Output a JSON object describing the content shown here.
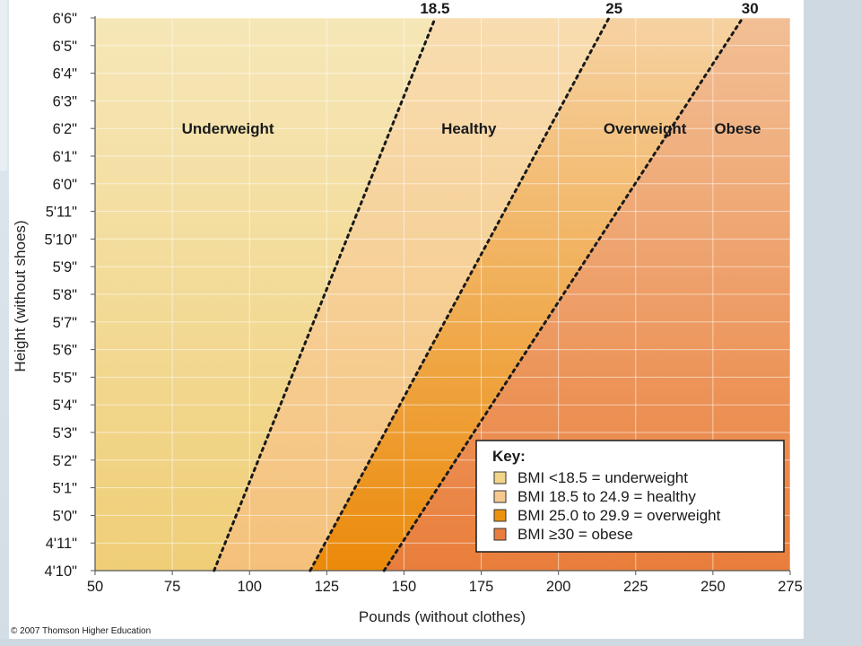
{
  "chart_data": {
    "type": "area",
    "title": "",
    "xlabel": "Pounds (without clothes)",
    "ylabel": "Height (without shoes)",
    "xlim": [
      50,
      275
    ],
    "x_ticks": [
      50,
      75,
      100,
      125,
      150,
      175,
      200,
      225,
      250,
      275
    ],
    "y_range_inches": [
      58,
      78
    ],
    "y_ticks": [
      "4'10\"",
      "4'11\"",
      "5'0\"",
      "5'1\"",
      "5'2\"",
      "5'3\"",
      "5'4\"",
      "5'5\"",
      "5'6\"",
      "5'7\"",
      "5'8\"",
      "5'9\"",
      "5'10\"",
      "5'11\"",
      "6'0\"",
      "6'1\"",
      "6'2\"",
      "6'3\"",
      "6'4\"",
      "6'5\"",
      "6'6\""
    ],
    "grid": true,
    "bmi_lines": [
      {
        "bmi": 18.5,
        "label": "18.5",
        "label_pos": [
          160,
          78
        ]
      },
      {
        "bmi": 25,
        "label": "25",
        "label_pos": [
          218,
          78
        ]
      },
      {
        "bmi": 30,
        "label": "30",
        "label_pos": [
          262,
          78
        ]
      }
    ],
    "regions": [
      {
        "name": "Underweight",
        "bmi_max": 18.5,
        "color_light": "#f6e7b8",
        "color_dark": "#efce77",
        "label_pos": [
          93,
          74
        ]
      },
      {
        "name": "Healthy",
        "bmi_min": 18.5,
        "bmi_max": 25,
        "color_light": "#f8ddb0",
        "color_dark": "#f4c17b",
        "label_pos": [
          171,
          74
        ]
      },
      {
        "name": "Overweight",
        "bmi_min": 25,
        "bmi_max": 30,
        "color_light": "#f6d2a2",
        "color_dark": "#eb8a0a",
        "label_pos": [
          228,
          74
        ]
      },
      {
        "name": "Obese",
        "bmi_min": 30,
        "color_light": "#f2bf95",
        "color_dark": "#e97e3b",
        "label_pos": [
          258,
          74
        ]
      }
    ],
    "legend": {
      "title": "Key:",
      "position": "bottom-right",
      "items": [
        {
          "text": "BMI <18.5 = underweight",
          "color": "#f1d488"
        },
        {
          "text": "BMI 18.5 to 24.9 = healthy",
          "color": "#f5c98d"
        },
        {
          "text": "BMI 25.0 to 29.9 = overweight",
          "color": "#ec920f"
        },
        {
          "text": "BMI ≥30 = obese",
          "color": "#e97d3e"
        }
      ]
    }
  },
  "footer": {
    "copyright": "© 2007 Thomson Higher Education"
  }
}
